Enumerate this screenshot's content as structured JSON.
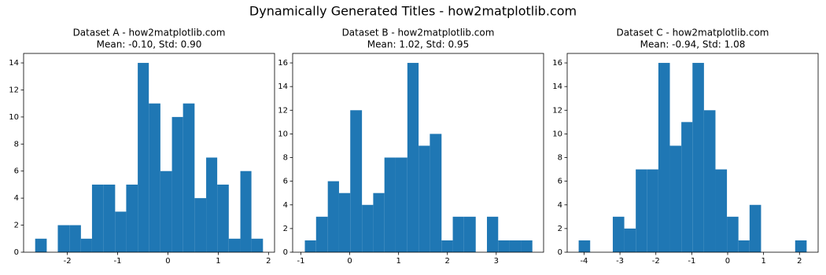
{
  "title": "Dynamically Generated Titles - how2matplotlib.com",
  "chart_data": [
    {
      "type": "histogram",
      "title": "Dataset A - how2matplotlib.com",
      "subtitle": "Mean: -0.10, Std: 0.90",
      "color": "#1f77b4",
      "bins": [
        -2.64,
        -2.41,
        -2.19,
        -1.96,
        -1.73,
        -1.51,
        -1.28,
        -1.05,
        -0.83,
        -0.6,
        -0.38,
        -0.15,
        0.08,
        0.3,
        0.53,
        0.76,
        0.98,
        1.21,
        1.44,
        1.66,
        1.89
      ],
      "values": [
        1,
        0,
        2,
        2,
        1,
        5,
        5,
        3,
        5,
        14,
        11,
        6,
        10,
        11,
        4,
        7,
        5,
        1,
        6,
        1
      ],
      "xlim": [
        -2.87,
        2.12
      ],
      "xticks": [
        -2,
        -1,
        0,
        1,
        2
      ],
      "ylim": [
        0,
        14.7
      ],
      "yticks": [
        0,
        2,
        4,
        6,
        8,
        10,
        12,
        14
      ]
    },
    {
      "type": "histogram",
      "title": "Dataset B - how2matplotlib.com",
      "subtitle": "Mean: 1.02, Std: 0.95",
      "color": "#1f77b4",
      "bins": [
        -0.92,
        -0.69,
        -0.45,
        -0.22,
        0.01,
        0.25,
        0.48,
        0.71,
        0.94,
        1.18,
        1.41,
        1.64,
        1.88,
        2.11,
        2.34,
        2.58,
        2.81,
        3.04,
        3.27,
        3.51,
        3.74
      ],
      "values": [
        1,
        3,
        6,
        5,
        12,
        4,
        5,
        8,
        8,
        16,
        9,
        10,
        1,
        3,
        3,
        0,
        3,
        1,
        1,
        1
      ],
      "xlim": [
        -1.17,
        3.97
      ],
      "xticks": [
        -1,
        0,
        1,
        2,
        3
      ],
      "ylim": [
        0,
        16.8
      ],
      "yticks": [
        0,
        2,
        4,
        6,
        8,
        10,
        12,
        14,
        16
      ]
    },
    {
      "type": "histogram",
      "title": "Dataset C - how2matplotlib.com",
      "subtitle": "Mean: -0.94, Std: 1.08",
      "color": "#1f77b4",
      "bins": [
        -4.15,
        -3.83,
        -3.52,
        -3.2,
        -2.88,
        -2.56,
        -2.25,
        -1.93,
        -1.61,
        -1.29,
        -0.98,
        -0.66,
        -0.34,
        -0.02,
        0.3,
        0.61,
        0.93,
        1.25,
        1.57,
        1.88,
        2.2
      ],
      "values": [
        1,
        0,
        0,
        3,
        2,
        7,
        7,
        16,
        9,
        11,
        16,
        12,
        7,
        3,
        1,
        4,
        0,
        0,
        0,
        1
      ],
      "xlim": [
        -4.47,
        2.52
      ],
      "xticks": [
        -4,
        -3,
        -2,
        -1,
        0,
        1,
        2
      ],
      "ylim": [
        0,
        16.8
      ],
      "yticks": [
        0,
        2,
        4,
        6,
        8,
        10,
        12,
        14,
        16
      ]
    }
  ]
}
